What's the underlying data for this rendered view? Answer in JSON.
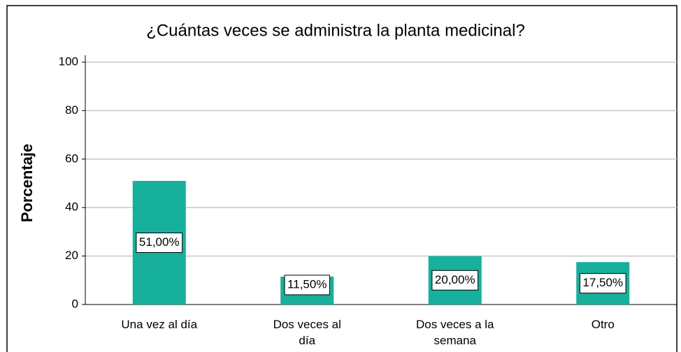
{
  "chart_data": {
    "type": "bar",
    "title": "¿Cuántas veces se administra la planta medicinal?",
    "y_label": "Porcentaje",
    "categories": [
      "Una vez al día",
      "Dos veces al día",
      "Dos veces a la semana",
      "Otro"
    ],
    "values": [
      51,
      11.5,
      20,
      17.5
    ],
    "value_labels": [
      "51,00%",
      "11,50%",
      "20,00%",
      "17,50%"
    ],
    "color": "#16b09c",
    "ylim": [
      0,
      100
    ],
    "yticks": [
      0,
      20,
      40,
      60,
      80,
      100
    ],
    "grid": true
  }
}
